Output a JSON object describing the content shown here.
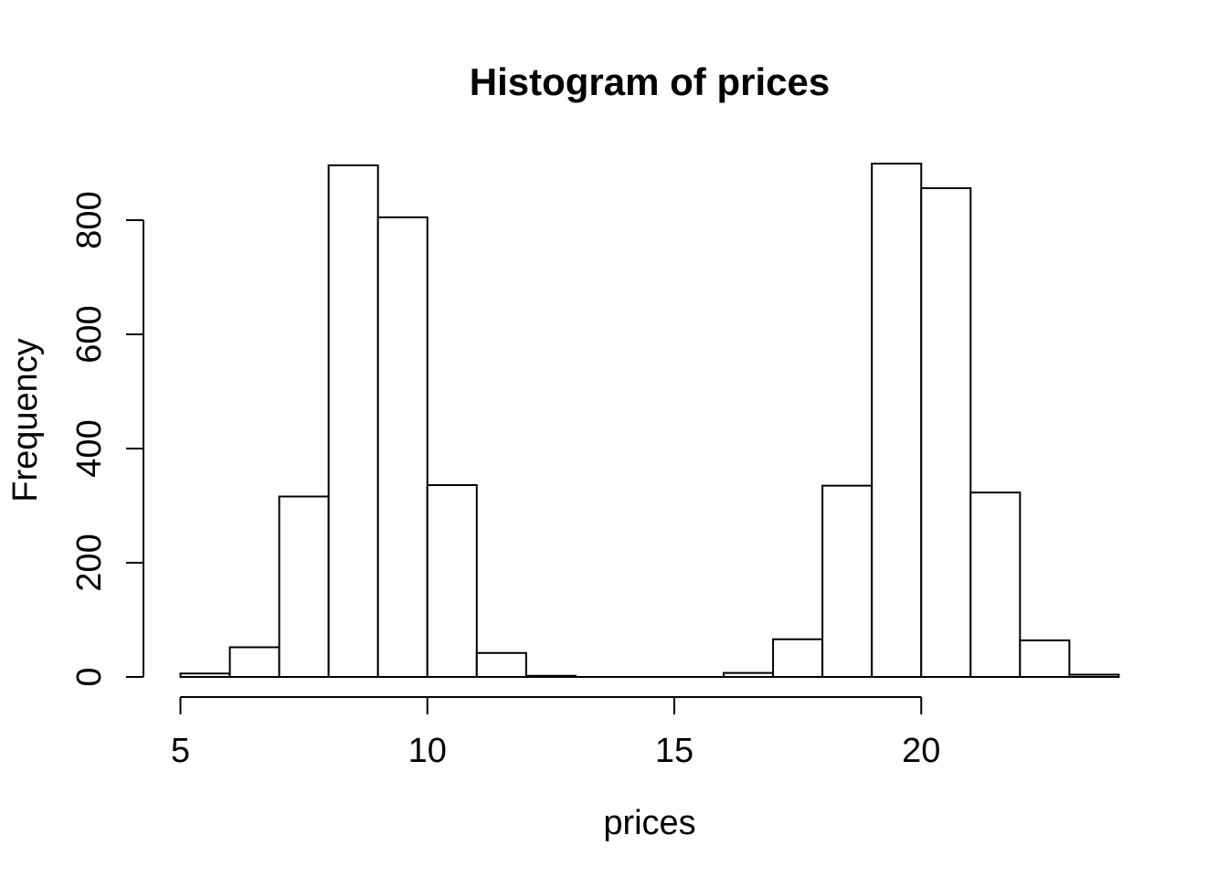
{
  "figure": {
    "background_color": "#ffffff",
    "foreground_color": "#000000"
  },
  "chart_data": {
    "type": "bar",
    "subtype": "histogram",
    "title": "Histogram of prices",
    "xlabel": "prices",
    "ylabel": "Frequency",
    "breaks": [
      5,
      6,
      7,
      8,
      9,
      10,
      11,
      12,
      13,
      14,
      15,
      16,
      17,
      18,
      19,
      20,
      21,
      22,
      23,
      24
    ],
    "counts": [
      6,
      52,
      316,
      896,
      805,
      336,
      42,
      2,
      0,
      0,
      0,
      7,
      66,
      335,
      899,
      856,
      323,
      64,
      4
    ],
    "x_ticks": [
      5,
      10,
      15,
      20
    ],
    "y_ticks": [
      0,
      200,
      400,
      600,
      800
    ],
    "xlim": [
      5,
      24
    ],
    "ylim": [
      0,
      800
    ],
    "grid": false,
    "legend": false,
    "bar_fill": "#ffffff",
    "bar_stroke": "#000000",
    "axis_color": "#000000"
  }
}
